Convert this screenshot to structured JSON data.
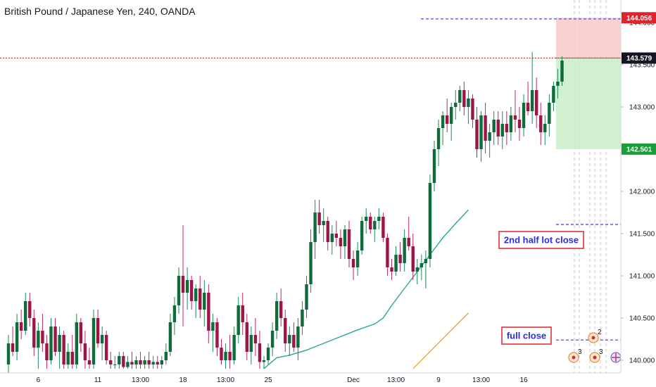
{
  "chart_data": {
    "type": "candlestick",
    "title": "British Pound / Japanese Yen, 240, OANDA",
    "ylim": [
      139.9,
      144.3
    ],
    "y_ticks": [
      "144.000",
      "143.500",
      "143.000",
      "142.500",
      "142.000",
      "141.500",
      "141.000",
      "140.500",
      "140.000"
    ],
    "y_tick_values": [
      144.0,
      143.5,
      143.0,
      142.5,
      142.0,
      141.5,
      141.0,
      140.5,
      140.0
    ],
    "x_ticks": [
      "6",
      "11",
      "13:00",
      "18",
      "13:00",
      "25",
      "Dec",
      "13:00",
      "9",
      "13:00",
      "16"
    ],
    "x_tick_bars": [
      7,
      21,
      31,
      41,
      51,
      61,
      81,
      91,
      101,
      111,
      121
    ],
    "price_badges": [
      {
        "label": "144.056",
        "value": 144.056,
        "color": "#e0242c"
      },
      {
        "label": "143.579",
        "value": 143.579,
        "color": "#131722"
      },
      {
        "label": "142.501",
        "value": 142.501,
        "color": "#1b9e3a"
      }
    ],
    "current_price": 143.579,
    "stop_loss": 144.056,
    "take_profit": 142.501,
    "ma_green": [
      [
        60,
        139.9
      ],
      [
        63,
        140.03
      ],
      [
        66,
        140.06
      ],
      [
        70,
        140.12
      ],
      [
        74,
        140.2
      ],
      [
        78,
        140.28
      ],
      [
        82,
        140.36
      ],
      [
        86,
        140.43
      ],
      [
        88,
        140.5
      ],
      [
        90,
        140.65
      ],
      [
        93,
        140.85
      ],
      [
        96,
        141.05
      ],
      [
        99,
        141.25
      ],
      [
        102,
        141.45
      ],
      [
        105,
        141.62
      ],
      [
        108,
        141.78
      ]
    ],
    "ma_orange": [
      [
        95,
        139.9
      ],
      [
        108,
        140.56
      ]
    ],
    "annotations": [
      {
        "text": "2nd half lot close",
        "value": 141.6
      },
      {
        "text": "full close",
        "value": 140.24
      }
    ],
    "events": [
      {
        "bar": 117,
        "count": "3"
      },
      {
        "bar": 121,
        "count": "3"
      },
      {
        "bar": 121,
        "count": "2"
      }
    ],
    "candles": [
      [
        139.95,
        140.3,
        139.85,
        140.2
      ],
      [
        140.2,
        140.4,
        140.05,
        140.1
      ],
      [
        140.1,
        140.55,
        140.0,
        140.45
      ],
      [
        140.45,
        140.6,
        140.25,
        140.35
      ],
      [
        140.35,
        140.8,
        140.3,
        140.7
      ],
      [
        140.7,
        140.8,
        140.4,
        140.5
      ],
      [
        140.5,
        140.6,
        140.05,
        140.15
      ],
      [
        140.15,
        140.45,
        139.9,
        140.35
      ],
      [
        140.35,
        140.55,
        140.1,
        140.2
      ],
      [
        140.2,
        140.3,
        139.9,
        140.0
      ],
      [
        140.0,
        140.5,
        139.95,
        140.4
      ],
      [
        140.4,
        140.5,
        140.05,
        140.1
      ],
      [
        140.1,
        140.4,
        139.9,
        140.3
      ],
      [
        140.3,
        140.35,
        139.9,
        139.95
      ],
      [
        139.95,
        140.2,
        139.9,
        140.1
      ],
      [
        140.1,
        140.3,
        139.9,
        139.95
      ],
      [
        139.95,
        140.55,
        139.9,
        140.45
      ],
      [
        140.45,
        140.5,
        140.1,
        140.2
      ],
      [
        140.2,
        140.35,
        139.9,
        140.0
      ],
      [
        140.0,
        140.15,
        139.9,
        139.95
      ],
      [
        139.95,
        140.6,
        139.9,
        140.5
      ],
      [
        140.5,
        140.6,
        140.15,
        140.2
      ],
      [
        140.2,
        140.4,
        140.0,
        140.3
      ],
      [
        140.3,
        140.35,
        139.95,
        140.0
      ],
      [
        140.0,
        140.1,
        139.9,
        139.95
      ],
      [
        139.95,
        140.05,
        139.9,
        139.95
      ],
      [
        139.95,
        140.1,
        139.9,
        140.05
      ],
      [
        140.05,
        140.1,
        139.9,
        139.92
      ],
      [
        139.92,
        140.05,
        139.9,
        139.98
      ],
      [
        139.98,
        140.1,
        139.9,
        139.95
      ],
      [
        139.95,
        140.05,
        139.9,
        140.0
      ],
      [
        140.0,
        140.1,
        139.9,
        139.95
      ],
      [
        139.95,
        140.05,
        139.9,
        140.0
      ],
      [
        140.0,
        140.1,
        139.9,
        139.95
      ],
      [
        139.95,
        140.05,
        139.9,
        139.98
      ],
      [
        139.98,
        140.05,
        139.9,
        139.95
      ],
      [
        139.95,
        140.05,
        139.9,
        140.0
      ],
      [
        140.0,
        140.2,
        139.95,
        140.1
      ],
      [
        140.1,
        140.55,
        140.05,
        140.45
      ],
      [
        140.45,
        140.75,
        140.3,
        140.65
      ],
      [
        140.65,
        141.1,
        140.55,
        141.0
      ],
      [
        141.0,
        141.6,
        140.4,
        140.8
      ],
      [
        140.8,
        141.1,
        140.6,
        140.95
      ],
      [
        140.95,
        141.0,
        140.6,
        140.7
      ],
      [
        140.7,
        140.9,
        140.5,
        140.85
      ],
      [
        140.85,
        141.0,
        140.5,
        140.6
      ],
      [
        140.6,
        140.95,
        140.4,
        140.8
      ],
      [
        140.8,
        140.9,
        140.2,
        140.35
      ],
      [
        140.35,
        140.55,
        140.1,
        140.45
      ],
      [
        140.45,
        140.5,
        140.05,
        140.15
      ],
      [
        140.15,
        140.25,
        139.95,
        140.0
      ],
      [
        140.0,
        140.2,
        139.9,
        140.1
      ],
      [
        140.1,
        140.3,
        139.9,
        140.0
      ],
      [
        140.0,
        140.4,
        139.95,
        140.3
      ],
      [
        140.3,
        140.75,
        140.2,
        140.65
      ],
      [
        140.65,
        140.8,
        140.3,
        140.45
      ],
      [
        140.45,
        140.55,
        140.0,
        140.1
      ],
      [
        140.1,
        140.4,
        139.95,
        140.3
      ],
      [
        140.3,
        140.5,
        140.05,
        140.2
      ],
      [
        140.2,
        140.35,
        139.9,
        139.98
      ],
      [
        139.98,
        140.05,
        139.9,
        140.0
      ],
      [
        140.0,
        140.2,
        139.95,
        140.15
      ],
      [
        140.15,
        140.45,
        140.05,
        140.35
      ],
      [
        140.35,
        140.8,
        140.25,
        140.7
      ],
      [
        140.7,
        140.85,
        140.4,
        140.5
      ],
      [
        140.5,
        140.6,
        140.1,
        140.2
      ],
      [
        140.2,
        140.4,
        140.05,
        140.3
      ],
      [
        140.3,
        140.45,
        140.1,
        140.15
      ],
      [
        140.15,
        140.5,
        140.0,
        140.4
      ],
      [
        140.4,
        140.7,
        140.3,
        140.6
      ],
      [
        140.6,
        141.0,
        140.5,
        140.9
      ],
      [
        140.9,
        141.55,
        140.8,
        141.4
      ],
      [
        141.4,
        141.9,
        141.2,
        141.75
      ],
      [
        141.75,
        141.9,
        141.5,
        141.6
      ],
      [
        141.6,
        141.8,
        141.4,
        141.65
      ],
      [
        141.65,
        141.7,
        141.3,
        141.4
      ],
      [
        141.4,
        141.6,
        141.25,
        141.5
      ],
      [
        141.5,
        141.65,
        141.35,
        141.45
      ],
      [
        141.45,
        141.55,
        141.2,
        141.35
      ],
      [
        141.35,
        141.6,
        141.2,
        141.55
      ],
      [
        141.55,
        141.65,
        141.1,
        141.2
      ],
      [
        141.2,
        141.3,
        140.95,
        141.1
      ],
      [
        141.1,
        141.4,
        141.0,
        141.3
      ],
      [
        141.3,
        141.7,
        141.25,
        141.65
      ],
      [
        141.65,
        141.8,
        141.5,
        141.7
      ],
      [
        141.7,
        141.75,
        141.5,
        141.55
      ],
      [
        141.55,
        141.7,
        141.4,
        141.65
      ],
      [
        141.65,
        141.8,
        141.55,
        141.7
      ],
      [
        141.7,
        141.75,
        141.4,
        141.45
      ],
      [
        141.45,
        141.5,
        141.0,
        141.1
      ],
      [
        141.1,
        141.2,
        140.95,
        141.05
      ],
      [
        141.05,
        141.35,
        141.0,
        141.25
      ],
      [
        141.25,
        141.4,
        141.05,
        141.15
      ],
      [
        141.15,
        141.55,
        141.05,
        141.45
      ],
      [
        141.45,
        141.7,
        141.3,
        141.35
      ],
      [
        141.35,
        141.5,
        140.95,
        141.05
      ],
      [
        141.05,
        141.2,
        140.9,
        141.1
      ],
      [
        141.1,
        141.25,
        140.95,
        141.15
      ],
      [
        141.15,
        141.3,
        140.85,
        141.2
      ],
      [
        141.2,
        142.2,
        141.1,
        142.1
      ],
      [
        142.1,
        142.6,
        142.0,
        142.5
      ],
      [
        142.5,
        142.85,
        142.3,
        142.75
      ],
      [
        142.75,
        142.95,
        142.55,
        142.9
      ],
      [
        142.9,
        143.1,
        142.7,
        142.8
      ],
      [
        142.8,
        143.05,
        142.6,
        143.0
      ],
      [
        143.0,
        143.2,
        142.85,
        143.05
      ],
      [
        143.05,
        143.25,
        142.95,
        143.2
      ],
      [
        143.2,
        143.3,
        142.9,
        143.0
      ],
      [
        143.0,
        143.2,
        142.8,
        143.1
      ],
      [
        143.1,
        143.15,
        142.75,
        142.85
      ],
      [
        142.85,
        143.0,
        142.4,
        142.5
      ],
      [
        142.5,
        142.95,
        142.35,
        142.9
      ],
      [
        142.9,
        143.05,
        142.45,
        142.6
      ],
      [
        142.6,
        142.8,
        142.4,
        142.7
      ],
      [
        142.7,
        142.95,
        142.55,
        142.85
      ],
      [
        142.85,
        142.95,
        142.55,
        142.65
      ],
      [
        142.65,
        142.95,
        142.5,
        142.8
      ],
      [
        142.8,
        142.95,
        142.55,
        142.7
      ],
      [
        142.7,
        143.0,
        142.6,
        142.9
      ],
      [
        142.9,
        143.2,
        142.7,
        142.85
      ],
      [
        142.85,
        143.0,
        142.6,
        142.75
      ],
      [
        142.75,
        143.15,
        142.65,
        143.05
      ],
      [
        143.05,
        143.3,
        142.9,
        142.95
      ],
      [
        142.95,
        143.65,
        142.8,
        143.2
      ],
      [
        143.2,
        143.35,
        142.75,
        142.9
      ],
      [
        142.9,
        143.05,
        142.55,
        142.7
      ],
      [
        142.7,
        142.9,
        142.55,
        142.8
      ],
      [
        142.8,
        143.15,
        142.65,
        143.05
      ],
      [
        143.05,
        143.3,
        142.95,
        143.25
      ],
      [
        143.25,
        143.45,
        143.1,
        143.3
      ],
      [
        143.3,
        143.6,
        143.25,
        143.55
      ]
    ]
  }
}
